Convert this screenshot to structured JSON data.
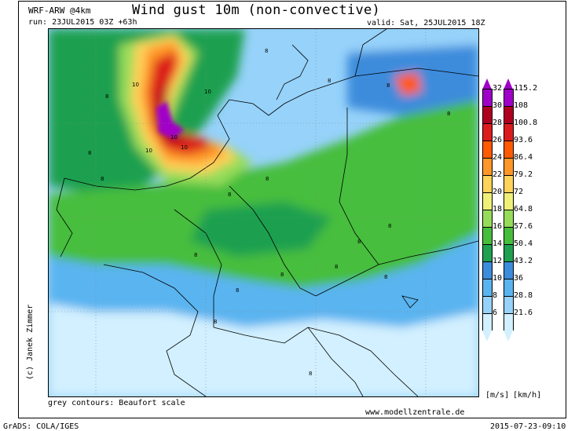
{
  "header": {
    "model": "WRF-ARW @4km",
    "run": "run: 23JUL2015 03Z +63h",
    "title": "Wind gust 10m (non-convective)",
    "valid": "valid: Sat, 25JUL2015 18Z"
  },
  "credit": "(c) Janek Zimmer",
  "contours_note": "grey contours: Beaufort scale",
  "website": "www.modellzentrale.de",
  "software": "GrADS: COLA/IGES",
  "timestamp": "2015-07-23-09:10",
  "units": {
    "ms": "[m/s]",
    "kmh": "[km/h]"
  },
  "legend_ms": [
    "32",
    "30",
    "28",
    "26",
    "24",
    "22",
    "20",
    "18",
    "16",
    "14",
    "12",
    "10",
    "8",
    "6"
  ],
  "legend_kmh": [
    "115.2",
    "108",
    "100.8",
    "93.6",
    "86.4",
    "79.2",
    "72",
    "64.8",
    "57.6",
    "50.4",
    "43.2",
    "36",
    "28.8",
    "21.6"
  ],
  "legend_colors": [
    "#a000c8",
    "#b00020",
    "#dc1c1c",
    "#ff5a00",
    "#ff9628",
    "#ffd25a",
    "#f0f078",
    "#96dc5a",
    "#46be3c",
    "#1ea050",
    "#3c8cdc",
    "#5ab4f0",
    "#96d2fa",
    "#d2f0ff"
  ],
  "map_labels": [
    "10",
    "10",
    "10",
    "10",
    "10",
    "8",
    "8",
    "8",
    "8",
    "8",
    "8",
    "8",
    "8",
    "8",
    "8",
    "8",
    "8",
    "8",
    "8",
    "8",
    "8",
    "8",
    "8"
  ]
}
